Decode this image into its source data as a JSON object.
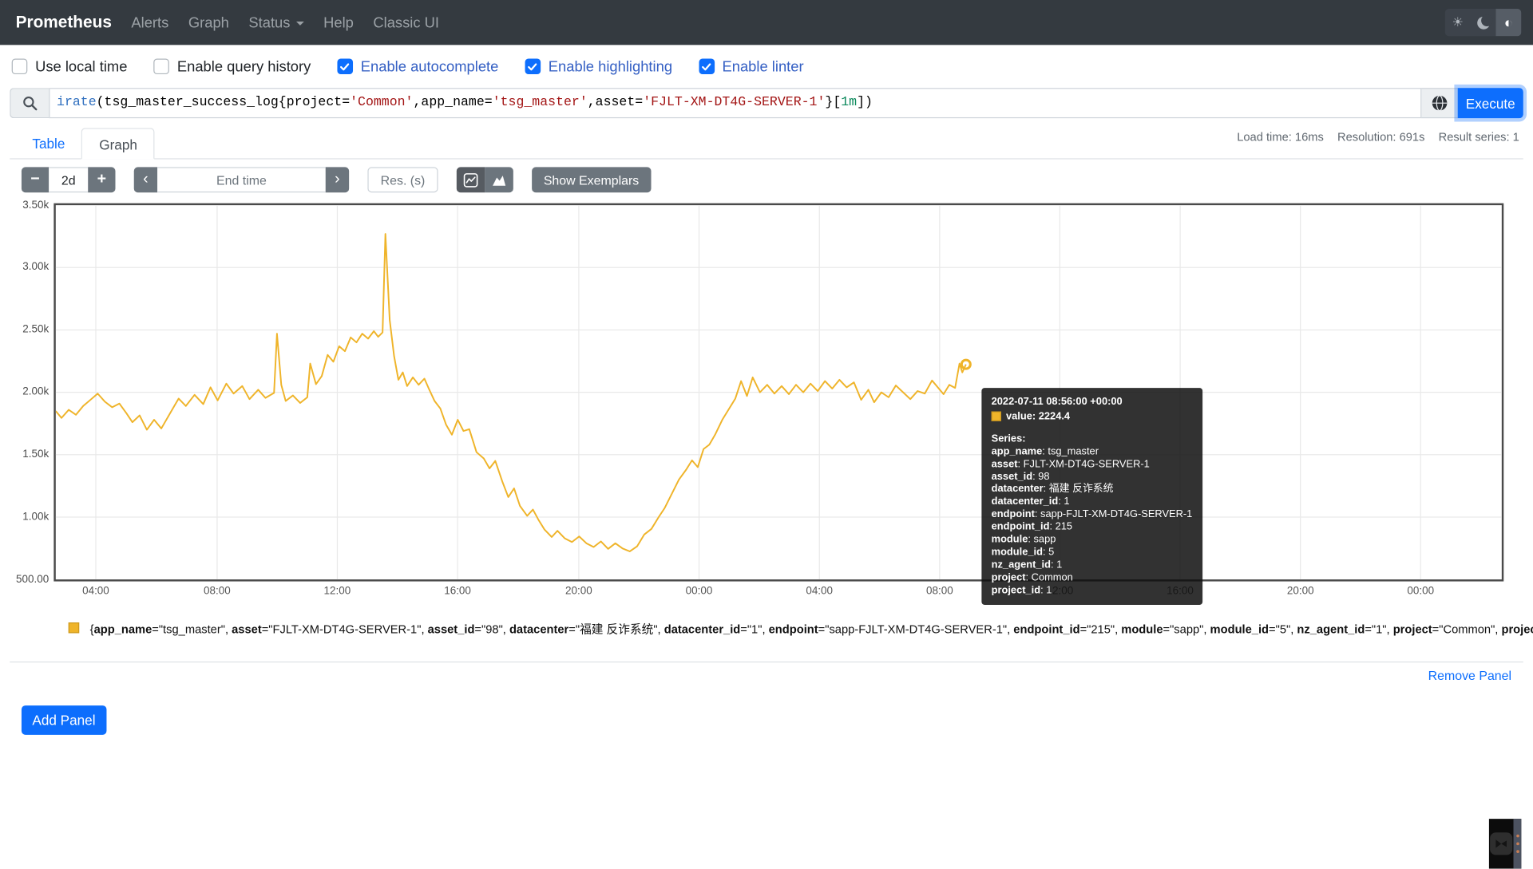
{
  "colors": {
    "accent": "#0d6efd",
    "navbar_bg": "#343a40",
    "series": "#efb42a",
    "checked_label": "#3560c4"
  },
  "navbar": {
    "brand": "Prometheus",
    "items": [
      {
        "label": "Alerts",
        "caret": false
      },
      {
        "label": "Graph",
        "caret": false
      },
      {
        "label": "Status",
        "caret": true
      },
      {
        "label": "Help",
        "caret": false
      },
      {
        "label": "Classic UI",
        "caret": false
      }
    ],
    "theme": {
      "light_icon": "sun-icon",
      "dark_icon": "moon-icon",
      "auto_icon": "auto-theme-icon",
      "auto_glyph": "◐",
      "sun_glyph": "☀",
      "active": "auto"
    }
  },
  "options": {
    "checkboxes": [
      {
        "label": "Use local time",
        "checked": false
      },
      {
        "label": "Enable query history",
        "checked": false
      },
      {
        "label": "Enable autocomplete",
        "checked": true
      },
      {
        "label": "Enable highlighting",
        "checked": true
      },
      {
        "label": "Enable linter",
        "checked": true
      }
    ]
  },
  "query": {
    "expression": "irate(tsg_master_success_log{project='Common',app_name='tsg_master',asset='FJLT-XM-DT4G-SERVER-1'}[1m])",
    "tokens": [
      {
        "t": "irate",
        "c": "fn"
      },
      {
        "t": "(",
        "c": "p"
      },
      {
        "t": "tsg_master_success_log",
        "c": "metric"
      },
      {
        "t": "{",
        "c": "p"
      },
      {
        "t": "project",
        "c": "label"
      },
      {
        "t": "=",
        "c": "p"
      },
      {
        "t": "'Common'",
        "c": "str"
      },
      {
        "t": ",",
        "c": "p"
      },
      {
        "t": "app_name",
        "c": "label"
      },
      {
        "t": "=",
        "c": "p"
      },
      {
        "t": "'tsg_master'",
        "c": "str"
      },
      {
        "t": ",",
        "c": "p"
      },
      {
        "t": "asset",
        "c": "label"
      },
      {
        "t": "=",
        "c": "p"
      },
      {
        "t": "'FJLT-XM-DT4G-SERVER-1'",
        "c": "str"
      },
      {
        "t": "}",
        "c": "p"
      },
      {
        "t": "[",
        "c": "p"
      },
      {
        "t": "1m",
        "c": "dur"
      },
      {
        "t": "]",
        "c": "p"
      },
      {
        "t": ")",
        "c": "p"
      }
    ],
    "execute_label": "Execute"
  },
  "stats": {
    "load_time": "Load time: 16ms",
    "resolution": "Resolution: 691s",
    "result_series": "Result series: 1"
  },
  "tabs": [
    {
      "label": "Table",
      "active": false
    },
    {
      "label": "Graph",
      "active": true
    }
  ],
  "controls": {
    "minus_label": "−",
    "plus_label": "+",
    "range_value": "2d",
    "prev_label": "‹",
    "next_label": "›",
    "end_time_placeholder": "End time",
    "res_placeholder": "Res. (s)",
    "show_exemplars_label": "Show Exemplars"
  },
  "chart_data": {
    "type": "line",
    "title": "",
    "xlabel": "",
    "ylabel": "",
    "grid": true,
    "legend_position": "bottom",
    "series_color": "#efb42a",
    "ylim": [
      500,
      3500
    ],
    "y_ticks": [
      {
        "v": 500,
        "label": "500.00"
      },
      {
        "v": 1000,
        "label": "1.00k"
      },
      {
        "v": 1500,
        "label": "1.50k"
      },
      {
        "v": 2000,
        "label": "2.00k"
      },
      {
        "v": 2500,
        "label": "2.50k"
      },
      {
        "v": 3000,
        "label": "3.00k"
      },
      {
        "v": 3500,
        "label": "3.50k"
      }
    ],
    "x_ticks": [
      {
        "f": 0.0277,
        "label": "04:00"
      },
      {
        "f": 0.1116,
        "label": "08:00"
      },
      {
        "f": 0.1947,
        "label": "12:00"
      },
      {
        "f": 0.2779,
        "label": "16:00"
      },
      {
        "f": 0.3617,
        "label": "20:00"
      },
      {
        "f": 0.4449,
        "label": "00:00"
      },
      {
        "f": 0.5281,
        "label": "04:00"
      },
      {
        "f": 0.6113,
        "label": "08:00"
      },
      {
        "f": 0.6944,
        "label": "12:00"
      },
      {
        "f": 0.7776,
        "label": "16:00"
      },
      {
        "f": 0.8608,
        "label": "20:00"
      },
      {
        "f": 0.9439,
        "label": "00:00"
      }
    ],
    "points": [
      [
        0.0,
        1850
      ],
      [
        0.004,
        1795
      ],
      [
        0.009,
        1860
      ],
      [
        0.014,
        1820
      ],
      [
        0.019,
        1890
      ],
      [
        0.024,
        1940
      ],
      [
        0.029,
        1990
      ],
      [
        0.034,
        1925
      ],
      [
        0.039,
        1880
      ],
      [
        0.044,
        1910
      ],
      [
        0.049,
        1830
      ],
      [
        0.053,
        1760
      ],
      [
        0.058,
        1815
      ],
      [
        0.063,
        1700
      ],
      [
        0.068,
        1780
      ],
      [
        0.073,
        1710
      ],
      [
        0.079,
        1830
      ],
      [
        0.085,
        1950
      ],
      [
        0.09,
        1890
      ],
      [
        0.096,
        1980
      ],
      [
        0.102,
        1905
      ],
      [
        0.107,
        2040
      ],
      [
        0.112,
        1935
      ],
      [
        0.118,
        2070
      ],
      [
        0.123,
        1990
      ],
      [
        0.129,
        2050
      ],
      [
        0.134,
        1945
      ],
      [
        0.14,
        2020
      ],
      [
        0.145,
        1955
      ],
      [
        0.151,
        1995
      ],
      [
        0.153,
        2470
      ],
      [
        0.156,
        2060
      ],
      [
        0.159,
        1930
      ],
      [
        0.164,
        1975
      ],
      [
        0.169,
        1915
      ],
      [
        0.174,
        1960
      ],
      [
        0.176,
        2230
      ],
      [
        0.18,
        2065
      ],
      [
        0.184,
        2130
      ],
      [
        0.188,
        2300
      ],
      [
        0.192,
        2245
      ],
      [
        0.196,
        2370
      ],
      [
        0.2,
        2330
      ],
      [
        0.204,
        2440
      ],
      [
        0.208,
        2400
      ],
      [
        0.212,
        2470
      ],
      [
        0.216,
        2430
      ],
      [
        0.22,
        2490
      ],
      [
        0.223,
        2445
      ],
      [
        0.226,
        2480
      ],
      [
        0.228,
        3270
      ],
      [
        0.231,
        2580
      ],
      [
        0.234,
        2290
      ],
      [
        0.237,
        2100
      ],
      [
        0.24,
        2160
      ],
      [
        0.243,
        2050
      ],
      [
        0.247,
        2120
      ],
      [
        0.251,
        2060
      ],
      [
        0.255,
        2110
      ],
      [
        0.258,
        2030
      ],
      [
        0.262,
        1930
      ],
      [
        0.266,
        1870
      ],
      [
        0.27,
        1740
      ],
      [
        0.274,
        1660
      ],
      [
        0.278,
        1780
      ],
      [
        0.282,
        1690
      ],
      [
        0.286,
        1705
      ],
      [
        0.291,
        1520
      ],
      [
        0.296,
        1470
      ],
      [
        0.3,
        1390
      ],
      [
        0.304,
        1450
      ],
      [
        0.309,
        1280
      ],
      [
        0.313,
        1160
      ],
      [
        0.317,
        1230
      ],
      [
        0.321,
        1090
      ],
      [
        0.326,
        1010
      ],
      [
        0.33,
        1060
      ],
      [
        0.334,
        975
      ],
      [
        0.338,
        900
      ],
      [
        0.343,
        840
      ],
      [
        0.347,
        890
      ],
      [
        0.352,
        830
      ],
      [
        0.357,
        800
      ],
      [
        0.362,
        845
      ],
      [
        0.367,
        790
      ],
      [
        0.372,
        760
      ],
      [
        0.377,
        805
      ],
      [
        0.382,
        745
      ],
      [
        0.387,
        790
      ],
      [
        0.392,
        748
      ],
      [
        0.397,
        725
      ],
      [
        0.402,
        765
      ],
      [
        0.407,
        860
      ],
      [
        0.412,
        905
      ],
      [
        0.417,
        1000
      ],
      [
        0.421,
        1070
      ],
      [
        0.426,
        1185
      ],
      [
        0.431,
        1300
      ],
      [
        0.436,
        1380
      ],
      [
        0.44,
        1455
      ],
      [
        0.444,
        1400
      ],
      [
        0.448,
        1545
      ],
      [
        0.452,
        1580
      ],
      [
        0.456,
        1660
      ],
      [
        0.461,
        1780
      ],
      [
        0.465,
        1855
      ],
      [
        0.47,
        1950
      ],
      [
        0.474,
        2090
      ],
      [
        0.478,
        1970
      ],
      [
        0.482,
        2120
      ],
      [
        0.487,
        2000
      ],
      [
        0.492,
        2060
      ],
      [
        0.497,
        1990
      ],
      [
        0.502,
        2050
      ],
      [
        0.507,
        1985
      ],
      [
        0.512,
        2060
      ],
      [
        0.517,
        2000
      ],
      [
        0.522,
        2070
      ],
      [
        0.527,
        2010
      ],
      [
        0.532,
        2090
      ],
      [
        0.537,
        2030
      ],
      [
        0.542,
        2100
      ],
      [
        0.547,
        2040
      ],
      [
        0.552,
        2080
      ],
      [
        0.557,
        1940
      ],
      [
        0.562,
        2020
      ],
      [
        0.566,
        1920
      ],
      [
        0.571,
        2000
      ],
      [
        0.576,
        1960
      ],
      [
        0.581,
        2055
      ],
      [
        0.586,
        2000
      ],
      [
        0.591,
        1945
      ],
      [
        0.596,
        2010
      ],
      [
        0.601,
        1990
      ],
      [
        0.606,
        2095
      ],
      [
        0.61,
        2040
      ],
      [
        0.614,
        1985
      ],
      [
        0.618,
        2060
      ],
      [
        0.622,
        2035
      ],
      [
        0.625,
        2230
      ],
      [
        0.627,
        2160
      ],
      [
        0.6295,
        2224.4
      ]
    ],
    "hover_point": {
      "f": 0.6295,
      "v": 2224.4
    }
  },
  "series_labels": [
    {
      "name": "app_name",
      "value": "tsg_master"
    },
    {
      "name": "asset",
      "value": "FJLT-XM-DT4G-SERVER-1"
    },
    {
      "name": "asset_id",
      "value": "98"
    },
    {
      "name": "datacenter",
      "value": "福建 反诈系统"
    },
    {
      "name": "datacenter_id",
      "value": "1"
    },
    {
      "name": "endpoint",
      "value": "sapp-FJLT-XM-DT4G-SERVER-1"
    },
    {
      "name": "endpoint_id",
      "value": "215"
    },
    {
      "name": "module",
      "value": "sapp"
    },
    {
      "name": "module_id",
      "value": "5"
    },
    {
      "name": "nz_agent_id",
      "value": "1"
    },
    {
      "name": "project",
      "value": "Common"
    },
    {
      "name": "project_id",
      "value": "1"
    }
  ],
  "tooltip": {
    "timestamp": "2022-07-11 08:56:00 +00:00",
    "value_label": "value:",
    "value": "2224.4",
    "series_heading": "Series:"
  },
  "panel": {
    "remove_label": "Remove Panel",
    "add_label": "Add Panel"
  }
}
